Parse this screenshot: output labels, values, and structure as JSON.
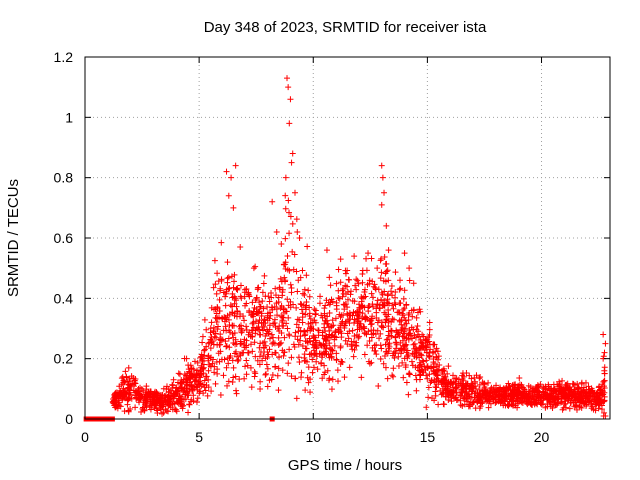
{
  "chart_data": {
    "type": "scatter",
    "title": "Day 348 of 2023, SRMTID for receiver ista",
    "xlabel": "GPS time / hours",
    "ylabel": "SRMTID / TECUs",
    "xlim": [
      0,
      23
    ],
    "ylim": [
      0,
      1.2
    ],
    "x_ticks": [
      0,
      5,
      10,
      15,
      20
    ],
    "x_tick_labels": [
      "0",
      "5",
      "10",
      "15",
      "20"
    ],
    "y_ticks": [
      0,
      0.2,
      0.4,
      0.6,
      0.8,
      1.0,
      1.2
    ],
    "y_tick_labels": [
      "0",
      "0.2",
      "0.4",
      "0.6",
      "0.8",
      "1",
      "1.2"
    ],
    "grid": true,
    "marker": "+",
    "marker_color": "#ff0000",
    "series": [
      {
        "name": "ista",
        "profile_hours": [
          0,
          0.5,
          1.0,
          1.2,
          1.5,
          2.0,
          2.5,
          3.0,
          3.5,
          4.0,
          4.5,
          5.0,
          5.3,
          5.6,
          6.0,
          6.3,
          6.6,
          7.0,
          7.5,
          8.0,
          8.5,
          8.8,
          9.0,
          9.3,
          9.6,
          10.0,
          10.5,
          11.0,
          11.5,
          12.0,
          12.5,
          13.0,
          13.5,
          14.0,
          14.5,
          15.0,
          15.5,
          16.0,
          17.0,
          18.0,
          19.0,
          20.0,
          21.0,
          22.0,
          22.6,
          22.8
        ],
        "profile_median": [
          0,
          0,
          0,
          0.05,
          0.08,
          0.1,
          0.07,
          0.06,
          0.06,
          0.08,
          0.1,
          0.15,
          0.2,
          0.27,
          0.32,
          0.3,
          0.27,
          0.3,
          0.3,
          0.28,
          0.3,
          0.4,
          0.45,
          0.38,
          0.32,
          0.25,
          0.27,
          0.3,
          0.32,
          0.34,
          0.32,
          0.33,
          0.3,
          0.27,
          0.25,
          0.2,
          0.14,
          0.1,
          0.09,
          0.08,
          0.08,
          0.08,
          0.08,
          0.07,
          0.07,
          0.1
        ],
        "profile_spread": [
          0,
          0,
          0,
          0.03,
          0.04,
          0.05,
          0.03,
          0.03,
          0.03,
          0.04,
          0.05,
          0.07,
          0.1,
          0.13,
          0.18,
          0.16,
          0.14,
          0.13,
          0.13,
          0.14,
          0.17,
          0.22,
          0.28,
          0.2,
          0.16,
          0.1,
          0.11,
          0.12,
          0.12,
          0.13,
          0.13,
          0.14,
          0.12,
          0.11,
          0.1,
          0.09,
          0.06,
          0.04,
          0.04,
          0.03,
          0.03,
          0.03,
          0.03,
          0.03,
          0.03,
          0.1
        ],
        "zero_points": [
          [
            0.05,
            0
          ],
          [
            0.1,
            0
          ],
          [
            0.15,
            0
          ],
          [
            0.2,
            0
          ],
          [
            0.3,
            0
          ],
          [
            0.4,
            0
          ],
          [
            0.5,
            0
          ],
          [
            0.7,
            0
          ],
          [
            0.8,
            0
          ],
          [
            0.9,
            0
          ],
          [
            1.0,
            0
          ],
          [
            1.1,
            0
          ],
          [
            1.2,
            0
          ],
          [
            8.2,
            0
          ]
        ],
        "peaks": [
          [
            6.2,
            0.82
          ],
          [
            6.4,
            0.8
          ],
          [
            6.3,
            0.74
          ],
          [
            6.5,
            0.7
          ],
          [
            6.6,
            0.84
          ],
          [
            6.8,
            0.57
          ],
          [
            7.0,
            0.42
          ],
          [
            7.4,
            0.5
          ],
          [
            8.2,
            0.72
          ],
          [
            8.4,
            0.62
          ],
          [
            8.6,
            0.58
          ],
          [
            8.85,
            1.13
          ],
          [
            8.9,
            1.1
          ],
          [
            9.0,
            1.06
          ],
          [
            8.95,
            0.98
          ],
          [
            9.1,
            0.88
          ],
          [
            9.05,
            0.85
          ],
          [
            8.8,
            0.8
          ],
          [
            9.2,
            0.75
          ],
          [
            9.3,
            0.62
          ],
          [
            9.4,
            0.6
          ],
          [
            10.6,
            0.56
          ],
          [
            11.2,
            0.53
          ],
          [
            12.4,
            0.55
          ],
          [
            12.8,
            0.5
          ],
          [
            13.0,
            0.84
          ],
          [
            13.05,
            0.8
          ],
          [
            13.1,
            0.75
          ],
          [
            13.0,
            0.71
          ],
          [
            13.2,
            0.64
          ],
          [
            13.3,
            0.56
          ],
          [
            13.8,
            0.46
          ],
          [
            14.0,
            0.55
          ],
          [
            14.2,
            0.5
          ],
          [
            14.4,
            0.45
          ],
          [
            15.1,
            0.32
          ],
          [
            22.7,
            0.28
          ],
          [
            22.8,
            0.25
          ],
          [
            22.7,
            0.2
          ],
          [
            22.75,
            0.16
          ]
        ]
      }
    ]
  }
}
